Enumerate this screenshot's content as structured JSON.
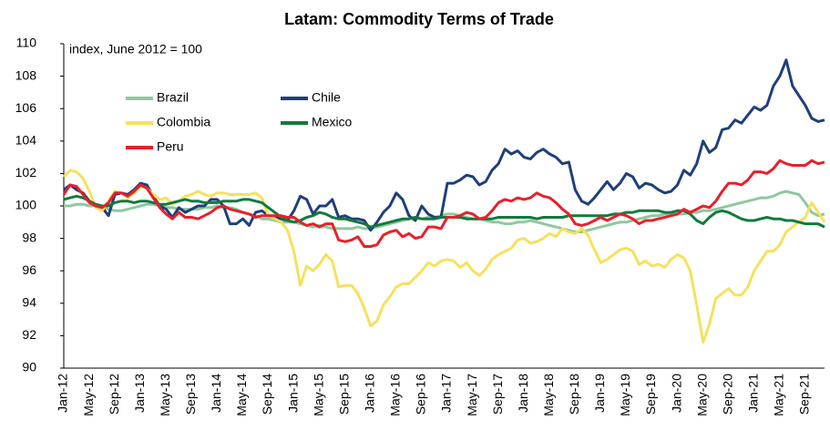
{
  "chart_data": {
    "type": "line",
    "title": "Latam: Commodity Terms of Trade",
    "annotation": "index, June 2012 = 100",
    "categories": [
      "Jan-12",
      null,
      null,
      null,
      "May-12",
      null,
      null,
      null,
      "Sep-12",
      null,
      null,
      null,
      "Jan-13",
      null,
      null,
      null,
      "May-13",
      null,
      null,
      null,
      "Sep-13",
      null,
      null,
      null,
      "Jan-14",
      null,
      null,
      null,
      "May-14",
      null,
      null,
      null,
      "Sep-14",
      null,
      null,
      null,
      "Jan-15",
      null,
      null,
      null,
      "May-15",
      null,
      null,
      null,
      "Sep-15",
      null,
      null,
      null,
      "Jan-16",
      null,
      null,
      null,
      "May-16",
      null,
      null,
      null,
      "Sep-16",
      null,
      null,
      null,
      "Jan-17",
      null,
      null,
      null,
      "May-17",
      null,
      null,
      null,
      "Sep-17",
      null,
      null,
      null,
      "Jan-18",
      null,
      null,
      null,
      "May-18",
      null,
      null,
      null,
      "Sep-18",
      null,
      null,
      null,
      "Jan-19",
      null,
      null,
      null,
      "May-19",
      null,
      null,
      null,
      "Sep-19",
      null,
      null,
      null,
      "Jan-20",
      null,
      null,
      null,
      "May-20",
      null,
      null,
      null,
      "Sep-20",
      null,
      null,
      null,
      "Jan-21",
      null,
      null,
      null,
      "May-21",
      null,
      null,
      null,
      "Sep-21",
      null,
      null,
      null
    ],
    "series": [
      {
        "name": "Brazil",
        "color": "#8fc8a0",
        "values": [
          100.0,
          100.0,
          100.1,
          100.1,
          100.0,
          100.0,
          99.9,
          99.8,
          99.7,
          99.7,
          99.8,
          99.9,
          100.0,
          100.1,
          100.1,
          100.0,
          99.9,
          99.9,
          99.8,
          99.8,
          99.8,
          99.8,
          99.9,
          99.9,
          100.0,
          99.9,
          99.9,
          99.8,
          99.6,
          99.5,
          99.4,
          99.2,
          99.2,
          99.1,
          99.0,
          99.0,
          99.0,
          98.9,
          98.8,
          98.7,
          98.8,
          98.7,
          98.6,
          98.6,
          98.6,
          98.6,
          98.7,
          98.6,
          98.6,
          98.7,
          98.8,
          98.9,
          99.0,
          99.1,
          99.2,
          99.3,
          99.2,
          99.3,
          99.3,
          99.4,
          99.5,
          99.5,
          99.4,
          99.3,
          99.2,
          99.2,
          99.1,
          99.0,
          99.0,
          98.9,
          98.9,
          99.0,
          99.0,
          99.1,
          99.0,
          98.9,
          98.8,
          98.7,
          98.6,
          98.5,
          98.4,
          98.4,
          98.5,
          98.6,
          98.7,
          98.8,
          98.9,
          99.0,
          99.0,
          99.1,
          99.2,
          99.3,
          99.4,
          99.4,
          99.5,
          99.5,
          99.5,
          99.5,
          99.6,
          99.6,
          99.7,
          99.7,
          99.8,
          99.9,
          100.0,
          100.1,
          100.2,
          100.3,
          100.4,
          100.5,
          100.5,
          100.6,
          100.8,
          100.9,
          100.8,
          100.7,
          100.2,
          99.6,
          99.4,
          99.5
        ]
      },
      {
        "name": "Chile",
        "color": "#1f3f7a",
        "values": [
          101.0,
          101.3,
          101.0,
          100.8,
          100.3,
          100.0,
          99.9,
          99.4,
          100.7,
          100.8,
          100.7,
          101.0,
          101.4,
          101.3,
          100.6,
          100.0,
          99.8,
          99.3,
          99.9,
          99.6,
          99.8,
          100.0,
          100.0,
          100.4,
          100.4,
          100.0,
          98.9,
          98.9,
          99.2,
          98.8,
          99.6,
          99.7,
          99.4,
          99.3,
          99.2,
          99.1,
          99.7,
          100.6,
          100.4,
          99.5,
          100.0,
          100.0,
          100.4,
          99.3,
          99.4,
          99.2,
          99.2,
          99.1,
          98.5,
          99.0,
          99.6,
          100.0,
          100.8,
          100.4,
          99.4,
          99.1,
          100.0,
          99.5,
          99.3,
          99.3,
          101.4,
          101.4,
          101.6,
          101.9,
          101.8,
          101.3,
          101.5,
          102.2,
          102.6,
          103.5,
          103.2,
          103.4,
          103.0,
          102.9,
          103.3,
          103.5,
          103.2,
          103.0,
          102.6,
          102.7,
          101.0,
          100.3,
          100.1,
          100.5,
          101.0,
          101.5,
          101.0,
          101.4,
          102.0,
          101.8,
          101.1,
          101.4,
          101.3,
          101.0,
          100.8,
          100.9,
          101.3,
          102.2,
          101.9,
          102.6,
          104.0,
          103.3,
          103.6,
          104.7,
          104.8,
          105.3,
          105.1,
          105.6,
          106.1,
          105.9,
          106.2,
          107.4,
          108.0,
          109.0,
          107.4,
          106.8,
          106.2,
          105.4,
          105.2,
          105.3
        ]
      },
      {
        "name": "Colombia",
        "color": "#f5e15f",
        "values": [
          101.8,
          102.2,
          102.1,
          101.7,
          100.9,
          99.9,
          99.7,
          100.3,
          100.9,
          100.8,
          100.5,
          100.8,
          101.2,
          101.1,
          100.7,
          100.4,
          100.5,
          100.1,
          100.3,
          100.6,
          100.7,
          100.9,
          100.7,
          100.6,
          100.8,
          100.8,
          100.7,
          100.7,
          100.7,
          100.7,
          100.8,
          100.5,
          99.4,
          99.2,
          99.0,
          98.5,
          97.2,
          95.1,
          96.3,
          96.0,
          96.4,
          97.0,
          96.6,
          95.0,
          95.1,
          95.1,
          94.6,
          93.7,
          92.6,
          92.9,
          93.9,
          94.4,
          95.0,
          95.2,
          95.2,
          95.6,
          96.0,
          96.5,
          96.3,
          96.6,
          96.7,
          96.6,
          96.2,
          96.5,
          96.0,
          95.7,
          96.1,
          96.7,
          97.0,
          97.2,
          97.4,
          97.9,
          98.0,
          97.7,
          97.8,
          98.0,
          98.3,
          98.1,
          98.6,
          98.4,
          98.3,
          98.6,
          98.2,
          97.3,
          96.5,
          96.7,
          97.0,
          97.3,
          97.4,
          97.2,
          96.4,
          96.6,
          96.3,
          96.4,
          96.2,
          96.7,
          97.0,
          96.8,
          96.0,
          93.9,
          91.6,
          92.7,
          94.3,
          94.6,
          94.9,
          94.5,
          94.5,
          95.0,
          96.0,
          96.6,
          97.2,
          97.2,
          97.6,
          98.4,
          98.7,
          99.0,
          99.3,
          100.2,
          99.6,
          99.0
        ]
      },
      {
        "name": "Mexico",
        "color": "#127a3c",
        "values": [
          100.4,
          100.5,
          100.6,
          100.5,
          100.3,
          100.1,
          100.0,
          100.0,
          100.2,
          100.3,
          100.3,
          100.2,
          100.3,
          100.3,
          100.2,
          100.1,
          100.1,
          100.2,
          100.3,
          100.4,
          100.3,
          100.3,
          100.2,
          100.2,
          100.2,
          100.3,
          100.3,
          100.3,
          100.4,
          100.4,
          100.3,
          100.2,
          99.9,
          99.6,
          99.3,
          99.1,
          99.0,
          99.1,
          99.3,
          99.4,
          99.6,
          99.5,
          99.3,
          99.2,
          99.2,
          99.1,
          99.0,
          98.9,
          98.7,
          98.8,
          98.9,
          99.0,
          99.1,
          99.2,
          99.2,
          99.3,
          99.2,
          99.2,
          99.2,
          99.3,
          99.3,
          99.3,
          99.3,
          99.2,
          99.2,
          99.2,
          99.2,
          99.2,
          99.3,
          99.3,
          99.3,
          99.3,
          99.3,
          99.3,
          99.2,
          99.3,
          99.3,
          99.3,
          99.3,
          99.4,
          99.4,
          99.4,
          99.4,
          99.4,
          99.4,
          99.4,
          99.5,
          99.5,
          99.6,
          99.6,
          99.7,
          99.7,
          99.7,
          99.7,
          99.6,
          99.6,
          99.7,
          99.7,
          99.5,
          99.1,
          98.9,
          99.3,
          99.6,
          99.7,
          99.6,
          99.4,
          99.2,
          99.1,
          99.1,
          99.2,
          99.3,
          99.2,
          99.2,
          99.1,
          99.1,
          99.0,
          98.9,
          98.9,
          98.9,
          98.7
        ]
      },
      {
        "name": "Peru",
        "color": "#e8202a",
        "values": [
          100.7,
          101.3,
          101.2,
          100.7,
          100.2,
          100.0,
          99.9,
          100.2,
          100.8,
          100.8,
          100.6,
          100.9,
          101.3,
          101.1,
          100.5,
          99.9,
          99.5,
          99.2,
          99.6,
          99.3,
          99.3,
          99.2,
          99.4,
          99.6,
          99.9,
          100.0,
          99.8,
          99.7,
          99.6,
          99.5,
          99.3,
          99.4,
          99.4,
          99.4,
          99.4,
          99.3,
          99.3,
          99.0,
          98.8,
          98.9,
          98.7,
          98.9,
          98.9,
          97.9,
          97.8,
          97.9,
          98.1,
          97.5,
          97.5,
          97.6,
          98.2,
          98.4,
          98.5,
          98.1,
          98.3,
          98.0,
          98.1,
          98.7,
          98.7,
          98.6,
          99.3,
          99.3,
          99.4,
          99.6,
          99.5,
          99.2,
          99.3,
          99.7,
          100.2,
          100.4,
          100.3,
          100.5,
          100.4,
          100.5,
          100.8,
          100.6,
          100.5,
          100.2,
          99.8,
          99.5,
          98.9,
          98.8,
          98.9,
          99.1,
          99.3,
          99.1,
          99.3,
          99.5,
          99.4,
          99.2,
          98.9,
          99.1,
          99.1,
          99.2,
          99.3,
          99.4,
          99.5,
          99.8,
          99.6,
          99.8,
          100.0,
          99.9,
          100.3,
          100.9,
          101.4,
          101.4,
          101.3,
          101.6,
          102.1,
          102.1,
          102.0,
          102.3,
          102.8,
          102.6,
          102.5,
          102.5,
          102.5,
          102.8,
          102.6,
          102.7
        ]
      }
    ],
    "ylim": [
      90,
      110
    ],
    "yticks": [
      90,
      92,
      94,
      96,
      98,
      100,
      102,
      104,
      106,
      108,
      110
    ],
    "grid": false,
    "legend": "upper left"
  }
}
